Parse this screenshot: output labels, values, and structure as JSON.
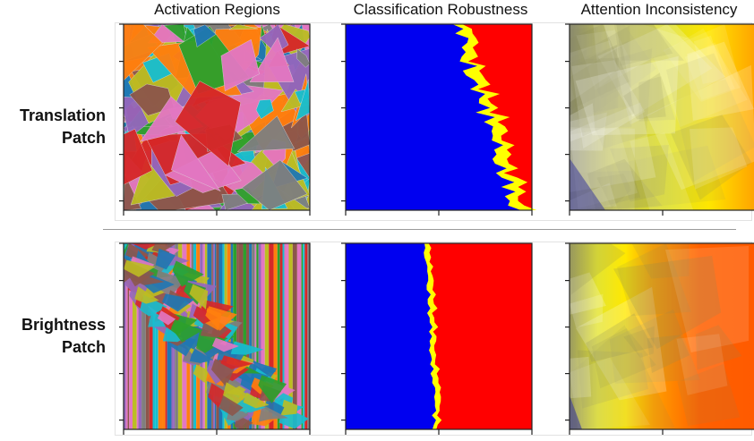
{
  "columns": [
    {
      "title": "Activation Regions"
    },
    {
      "title": "Classification Robustness"
    },
    {
      "title": "Attention Inconsistency"
    }
  ],
  "rows": [
    {
      "label_line1": "Translation",
      "label_line2": "Patch"
    },
    {
      "label_line1": "Brightness",
      "label_line2": "Patch"
    }
  ],
  "colors": {
    "robust_class": "#0000f0",
    "boundary": "#ffff00",
    "other_class": "#ff0000",
    "attention_low": "#3a3a9a",
    "attention_mid": "#e0e020",
    "attention_high": "#ff6000"
  }
}
